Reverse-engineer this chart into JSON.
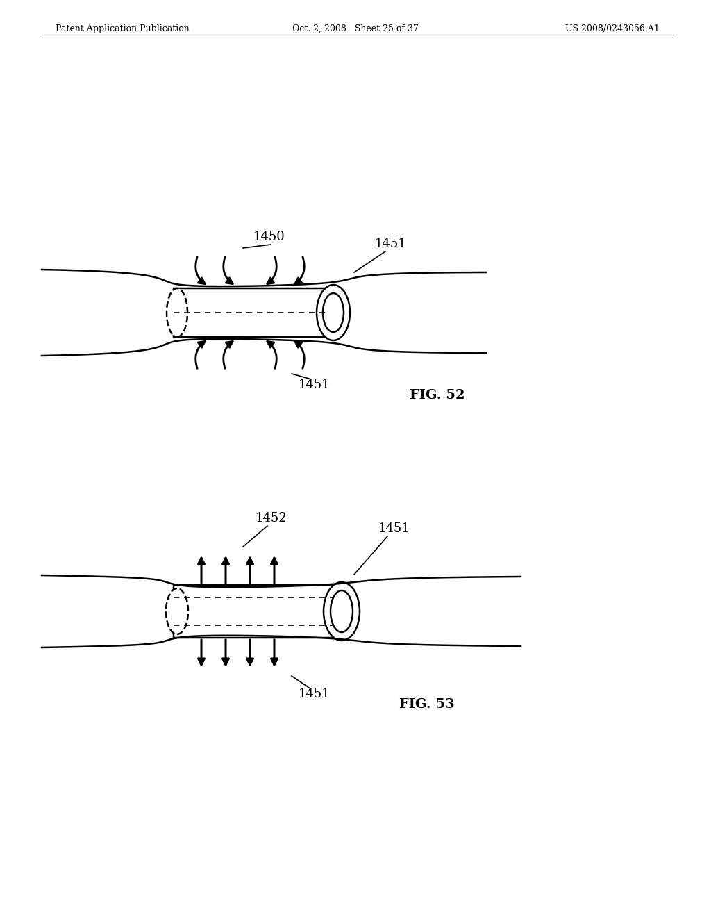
{
  "bg_color": "#ffffff",
  "header_left": "Patent Application Publication",
  "header_mid": "Oct. 2, 2008   Sheet 25 of 37",
  "header_right": "US 2008/0243056 A1",
  "fig52_label": "FIG. 52",
  "fig53_label": "FIG. 53",
  "label_1450": "1450",
  "label_1451": "1451",
  "label_1452": "1452"
}
